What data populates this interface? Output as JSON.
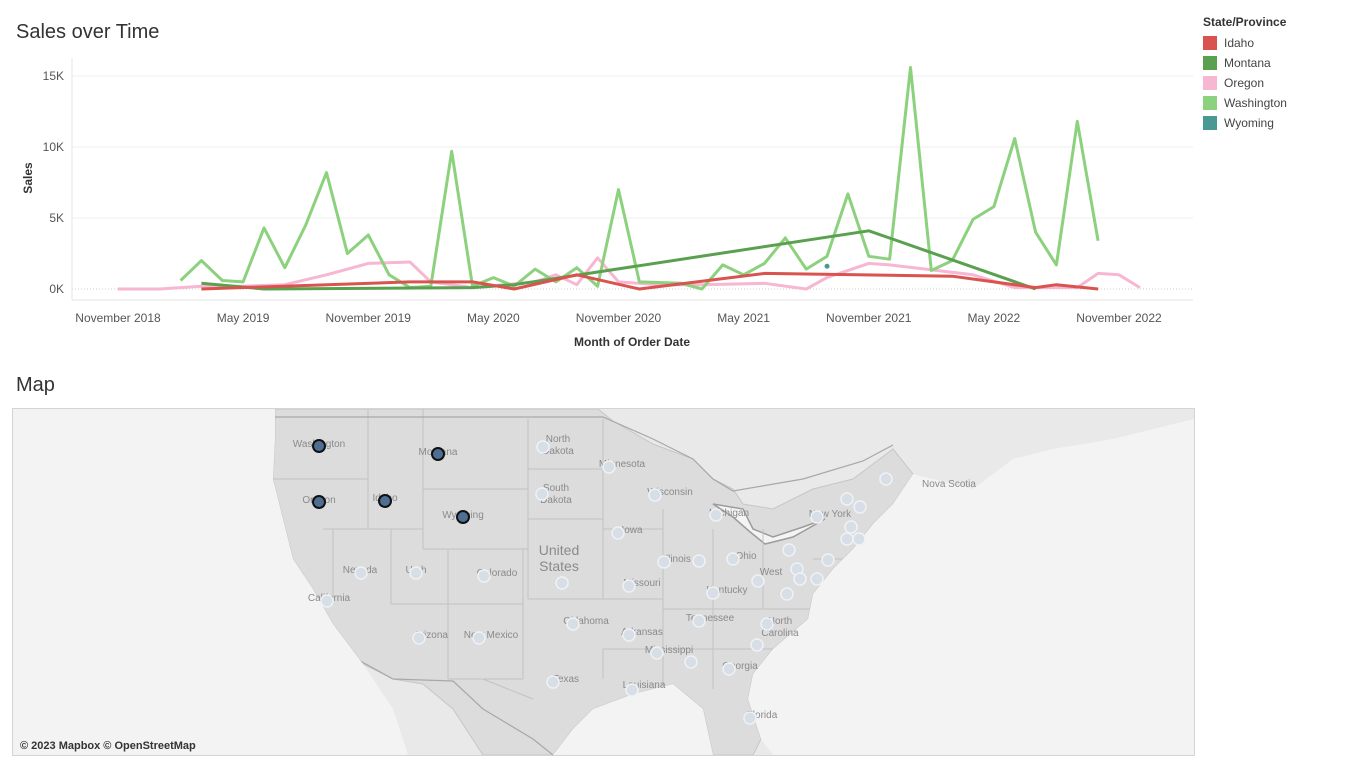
{
  "chart": {
    "title": "Sales over Time",
    "xlabel": "Month of Order Date",
    "ylabel": "Sales"
  },
  "legend": {
    "title": "State/Province",
    "items": [
      {
        "label": "Idaho",
        "color": "#d9534f"
      },
      {
        "label": "Montana",
        "color": "#59a14f"
      },
      {
        "label": "Oregon",
        "color": "#f7b6d2"
      },
      {
        "label": "Washington",
        "color": "#8cd17d"
      },
      {
        "label": "Wyoming",
        "color": "#499894"
      }
    ]
  },
  "chart_data": {
    "type": "line",
    "ylim": [
      0,
      16000
    ],
    "y_ticks": [
      0,
      5000,
      10000,
      15000
    ],
    "y_tick_labels": [
      "0K",
      "5K",
      "10K",
      "15K"
    ],
    "xlim": [
      "2018-10",
      "2023-01"
    ],
    "x_tick_labels": [
      {
        "date": "2018-11",
        "label": "November 2018"
      },
      {
        "date": "2019-05",
        "label": "May 2019"
      },
      {
        "date": "2019-11",
        "label": "November 2019"
      },
      {
        "date": "2020-05",
        "label": "May 2020"
      },
      {
        "date": "2020-11",
        "label": "November 2020"
      },
      {
        "date": "2021-05",
        "label": "May 2021"
      },
      {
        "date": "2021-11",
        "label": "November 2021"
      },
      {
        "date": "2022-05",
        "label": "May 2022"
      },
      {
        "date": "2022-11",
        "label": "November 2022"
      }
    ],
    "grid": true,
    "series": [
      {
        "name": "Oregon",
        "color": "#f7b6d2",
        "points": [
          [
            "2018-11",
            0
          ],
          [
            "2019-01",
            0
          ],
          [
            "2019-03",
            200
          ],
          [
            "2019-05",
            200
          ],
          [
            "2019-07",
            300
          ],
          [
            "2019-09",
            1000
          ],
          [
            "2019-11",
            1800
          ],
          [
            "2020-01",
            1900
          ],
          [
            "2020-02",
            500
          ],
          [
            "2020-04",
            100
          ],
          [
            "2020-07",
            500
          ],
          [
            "2020-08",
            1000
          ],
          [
            "2020-09",
            300
          ],
          [
            "2020-10",
            2200
          ],
          [
            "2020-11",
            500
          ],
          [
            "2021-01",
            300
          ],
          [
            "2021-03",
            300
          ],
          [
            "2021-06",
            400
          ],
          [
            "2021-08",
            0
          ],
          [
            "2021-09",
            800
          ],
          [
            "2021-11",
            1800
          ],
          [
            "2021-12",
            1700
          ],
          [
            "2022-04",
            1000
          ],
          [
            "2022-06",
            100
          ],
          [
            "2022-09",
            100
          ],
          [
            "2022-10",
            1100
          ],
          [
            "2022-11",
            1000
          ],
          [
            "2022-12",
            100
          ]
        ]
      },
      {
        "name": "Washington",
        "color": "#8cd17d",
        "points": [
          [
            "2019-02",
            600
          ],
          [
            "2019-03",
            2000
          ],
          [
            "2019-04",
            600
          ],
          [
            "2019-05",
            500
          ],
          [
            "2019-06",
            4300
          ],
          [
            "2019-07",
            1500
          ],
          [
            "2019-08",
            4500
          ],
          [
            "2019-09",
            8200
          ],
          [
            "2019-10",
            2500
          ],
          [
            "2019-11",
            3800
          ],
          [
            "2019-12",
            1000
          ],
          [
            "2020-01",
            100
          ],
          [
            "2020-02",
            200
          ],
          [
            "2020-03",
            9700
          ],
          [
            "2020-04",
            200
          ],
          [
            "2020-05",
            800
          ],
          [
            "2020-06",
            200
          ],
          [
            "2020-07",
            1400
          ],
          [
            "2020-08",
            500
          ],
          [
            "2020-09",
            1500
          ],
          [
            "2020-10",
            200
          ],
          [
            "2020-11",
            7000
          ],
          [
            "2020-12",
            500
          ],
          [
            "2021-02",
            400
          ],
          [
            "2021-03",
            0
          ],
          [
            "2021-04",
            1700
          ],
          [
            "2021-05",
            1000
          ],
          [
            "2021-06",
            1800
          ],
          [
            "2021-07",
            3600
          ],
          [
            "2021-08",
            1400
          ],
          [
            "2021-09",
            2300
          ],
          [
            "2021-10",
            6700
          ],
          [
            "2021-11",
            2300
          ],
          [
            "2021-12",
            2100
          ],
          [
            "2022-01",
            15600
          ],
          [
            "2022-02",
            1300
          ],
          [
            "2022-03",
            2000
          ],
          [
            "2022-04",
            4900
          ],
          [
            "2022-05",
            5800
          ],
          [
            "2022-06",
            10600
          ],
          [
            "2022-07",
            4000
          ],
          [
            "2022-08",
            1700
          ],
          [
            "2022-09",
            11800
          ],
          [
            "2022-10",
            3400
          ]
        ]
      },
      {
        "name": "Montana",
        "color": "#59a14f",
        "points": [
          [
            "2019-03",
            400
          ],
          [
            "2019-06",
            0
          ],
          [
            "2020-04",
            100
          ],
          [
            "2020-06",
            300
          ],
          [
            "2021-11",
            4100
          ],
          [
            "2022-07",
            0
          ]
        ]
      },
      {
        "name": "Idaho",
        "color": "#d9534f",
        "points": [
          [
            "2019-03",
            0
          ],
          [
            "2020-01",
            500
          ],
          [
            "2020-04",
            500
          ],
          [
            "2020-06",
            0
          ],
          [
            "2020-09",
            1000
          ],
          [
            "2020-12",
            0
          ],
          [
            "2021-06",
            1100
          ],
          [
            "2022-03",
            900
          ],
          [
            "2022-07",
            100
          ],
          [
            "2022-08",
            300
          ],
          [
            "2022-10",
            0
          ]
        ]
      },
      {
        "name": "Wyoming",
        "color": "#499894",
        "points": [
          [
            "2021-09",
            1600
          ]
        ]
      }
    ]
  },
  "map": {
    "title": "Map",
    "attribution": "© 2023 Mapbox © OpenStreetMap",
    "labels": [
      "Washington",
      "Montana",
      "North Dakota",
      "Minnesota",
      "Oregon",
      "Idaho",
      "Wyoming",
      "South Dakota",
      "Wisconsin",
      "Michigan",
      "New York",
      "Nova Scotia",
      "Iowa",
      "United States",
      "Nevada",
      "Utah",
      "Colorado",
      "Illinois",
      "Ohio",
      "West",
      "California",
      "Missouri",
      "Kentucky",
      "Oklahoma",
      "Arkansas",
      "Tennessee",
      "North Carolina",
      "Arizona",
      "New Mexico",
      "Mississippi",
      "Georgia",
      "Texas",
      "Louisiana",
      "Florida"
    ]
  }
}
